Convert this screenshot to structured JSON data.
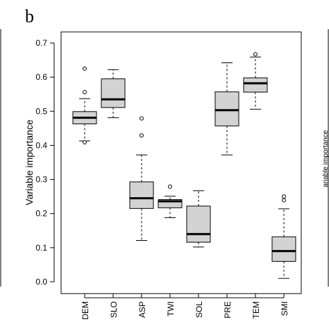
{
  "panel_label": "b",
  "chart_data": {
    "type": "box",
    "title": "",
    "xlabel": "",
    "ylabel": "Variable importance",
    "ylim": [
      0.0,
      0.7
    ],
    "yticks": [
      "0.0",
      "0.1",
      "0.2",
      "0.3",
      "0.4",
      "0.5",
      "0.6",
      "0.7"
    ],
    "grid": false,
    "box_fill": "#d3d3d3",
    "categories": [
      "DEM",
      "SLO",
      "ASP",
      "TWI",
      "SOL",
      "PRE",
      "TEM",
      "SMI"
    ],
    "boxes": [
      {
        "category": "DEM",
        "whisker_low": 0.413,
        "q1": 0.463,
        "median": 0.481,
        "q3": 0.499,
        "whisker_high": 0.537,
        "outliers": [
          0.409,
          0.556,
          0.625
        ]
      },
      {
        "category": "SLO",
        "whisker_low": 0.481,
        "q1": 0.511,
        "median": 0.535,
        "q3": 0.595,
        "whisker_high": 0.622,
        "outliers": []
      },
      {
        "category": "ASP",
        "whisker_low": 0.121,
        "q1": 0.215,
        "median": 0.245,
        "q3": 0.293,
        "whisker_high": 0.372,
        "outliers": [
          0.429,
          0.479
        ]
      },
      {
        "category": "TWI",
        "whisker_low": 0.188,
        "q1": 0.217,
        "median": 0.236,
        "q3": 0.241,
        "whisker_high": 0.251,
        "outliers": [
          0.279
        ]
      },
      {
        "category": "SOL",
        "whisker_low": 0.102,
        "q1": 0.116,
        "median": 0.14,
        "q3": 0.222,
        "whisker_high": 0.267,
        "outliers": []
      },
      {
        "category": "PRE",
        "whisker_low": 0.372,
        "q1": 0.457,
        "median": 0.503,
        "q3": 0.557,
        "whisker_high": 0.642,
        "outliers": []
      },
      {
        "category": "TEM",
        "whisker_low": 0.506,
        "q1": 0.556,
        "median": 0.582,
        "q3": 0.598,
        "whisker_high": 0.659,
        "outliers": [
          0.667
        ]
      },
      {
        "category": "SMI",
        "whisker_low": 0.01,
        "q1": 0.06,
        "median": 0.09,
        "q3": 0.132,
        "whisker_high": 0.214,
        "outliers": [
          0.239,
          0.25
        ]
      }
    ]
  }
}
